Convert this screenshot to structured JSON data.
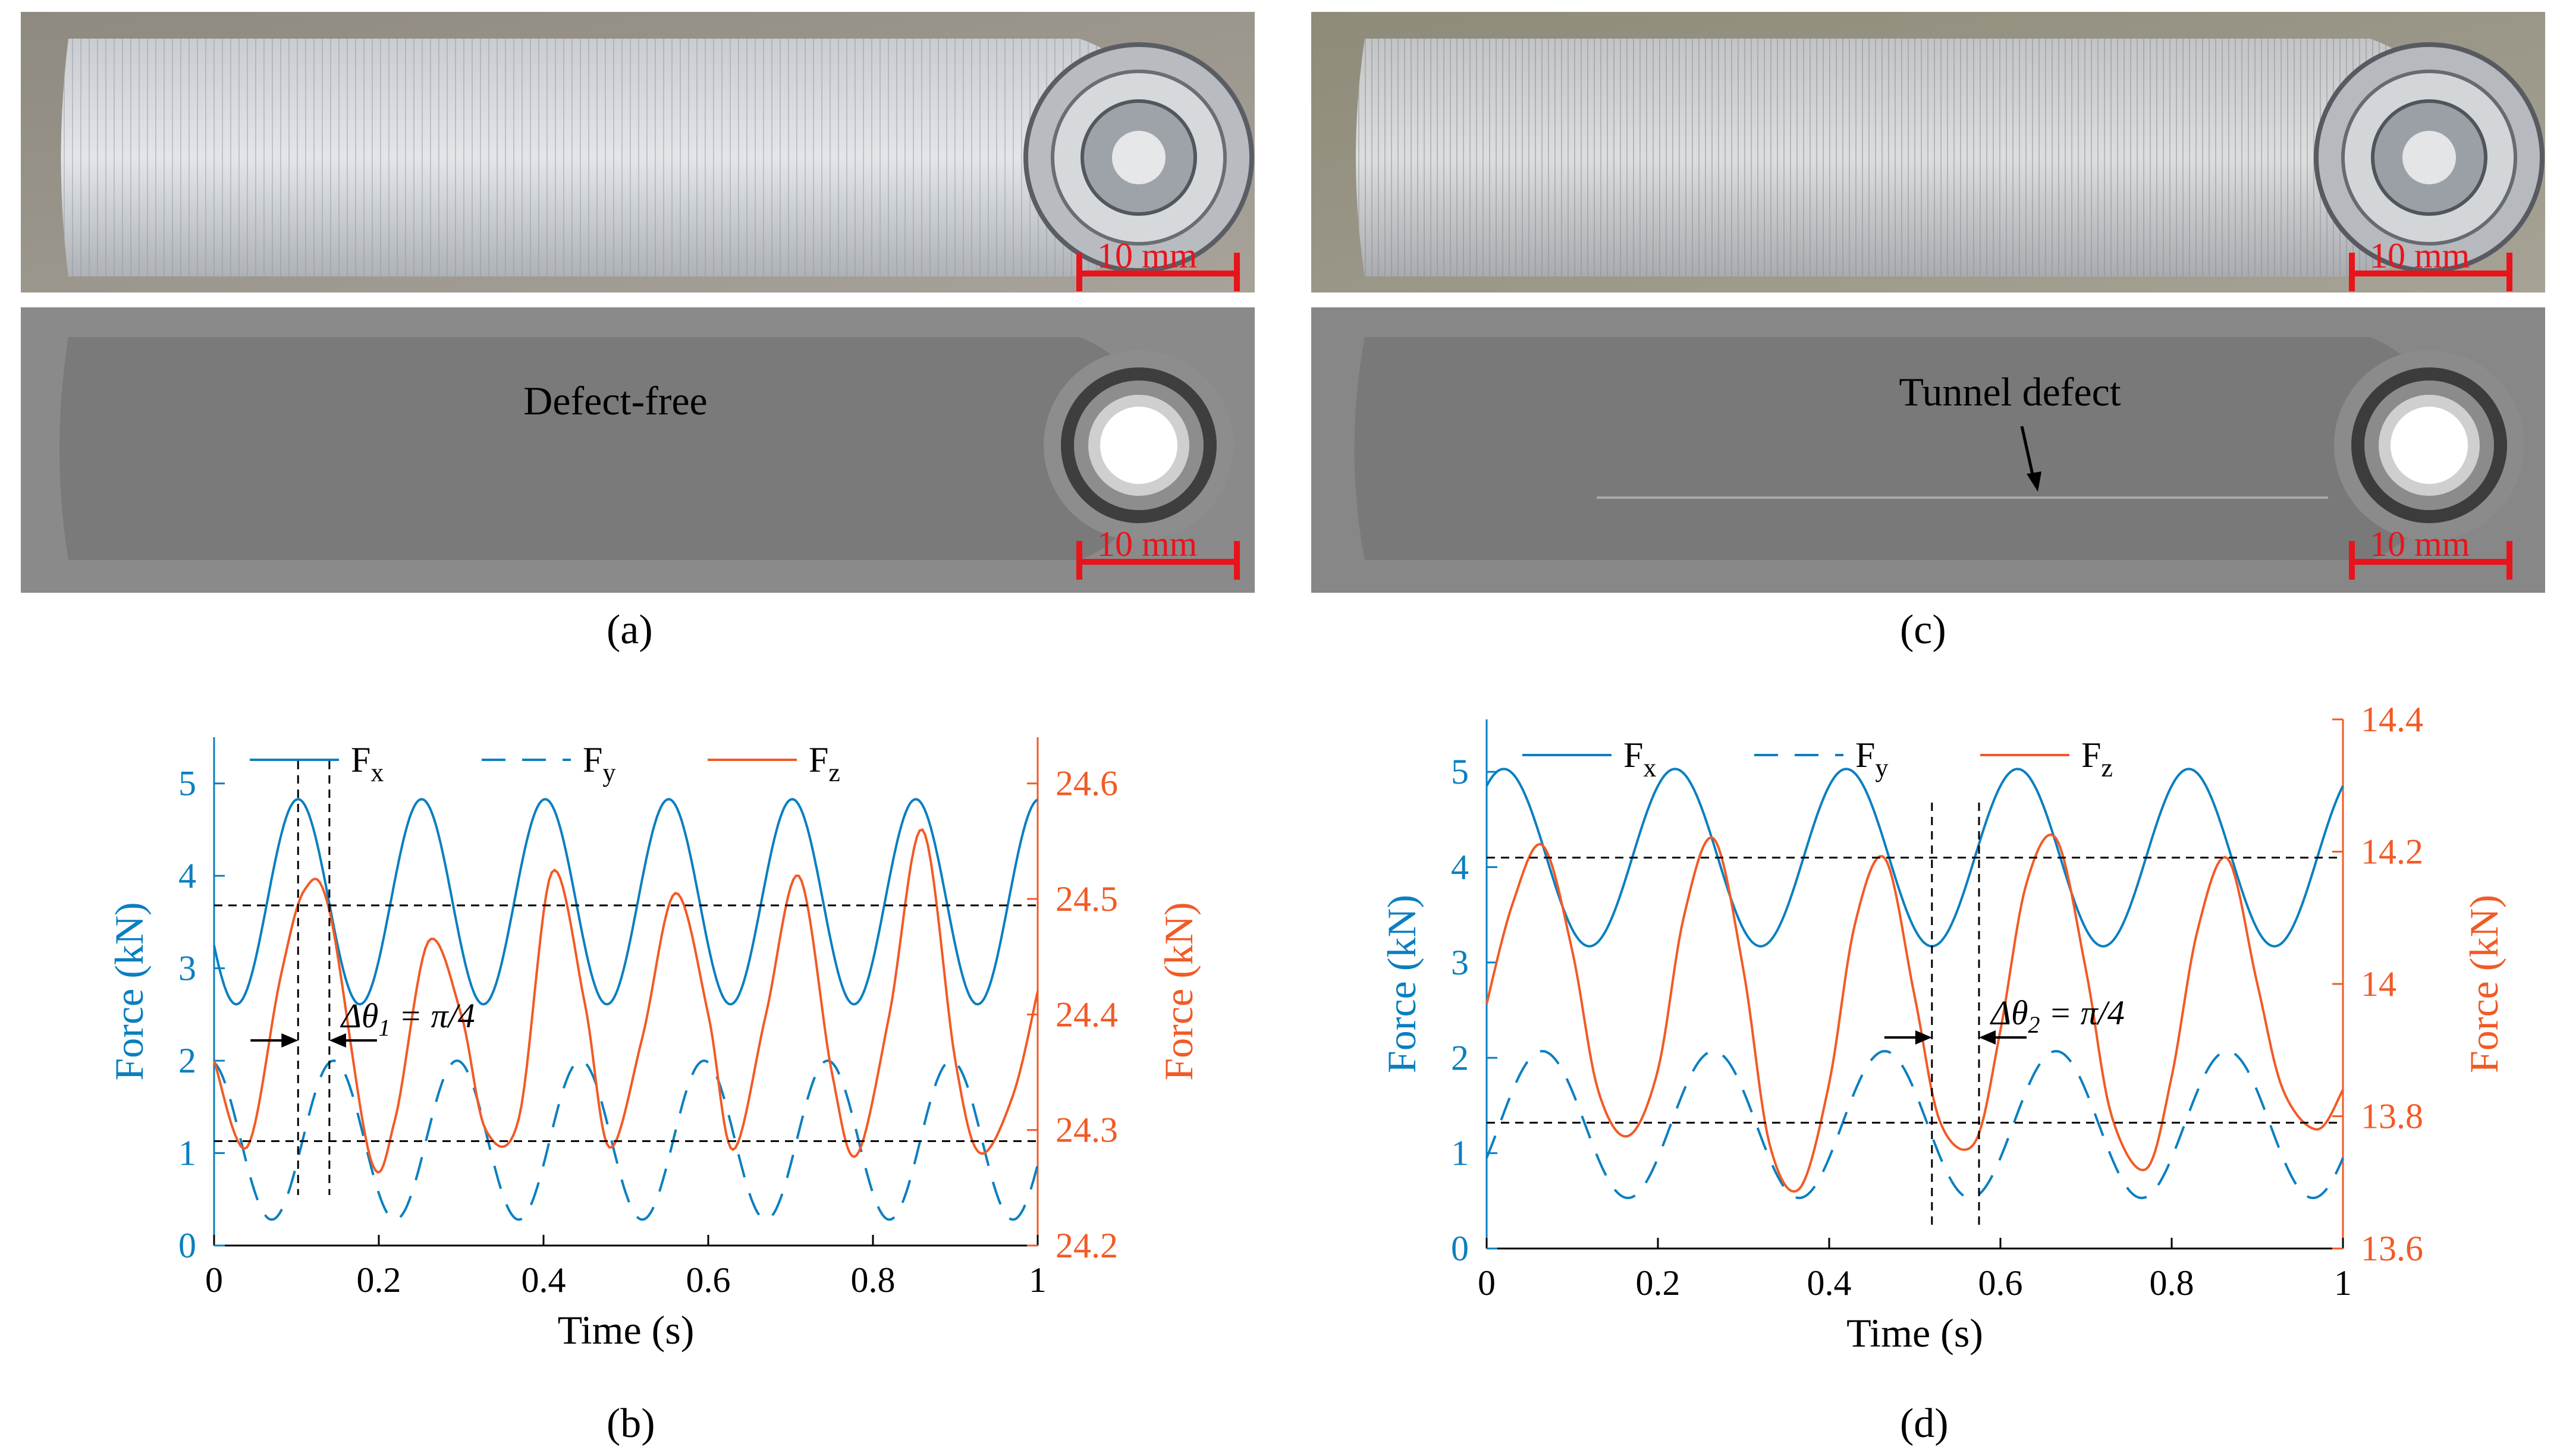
{
  "panels": {
    "a": {
      "label": "(a)",
      "xray_text": "Defect-free",
      "scale_text_top": "10 mm",
      "scale_text_bottom": "10 mm"
    },
    "b": {
      "label": "(b)"
    },
    "c": {
      "label": "(c)",
      "xray_text": "Tunnel defect",
      "scale_text_top": "10 mm",
      "scale_text_bottom": "10 mm"
    },
    "d": {
      "label": "(d)"
    }
  },
  "colors": {
    "fx": "#0a7fc0",
    "fy": "#0a7fc0",
    "fz": "#f25a25",
    "guide": "#000000",
    "scale_bar": "#e8141c"
  },
  "chart_data": [
    {
      "type": "line",
      "panel": "b",
      "xlabel": "Time (s)",
      "ylabel_left": "Force (kN)",
      "ylabel_right": "Force (kN)",
      "xlim": [
        0,
        1
      ],
      "ylim_left": [
        0,
        5.5
      ],
      "ylim_right": [
        24.2,
        24.64
      ],
      "xticks": [
        "0",
        "0.2",
        "0.4",
        "0.6",
        "0.8",
        "1"
      ],
      "yticks_left": [
        "0",
        "1",
        "2",
        "3",
        "4",
        "5"
      ],
      "yticks_right": [
        "24.2",
        "24.3",
        "24.4",
        "24.5",
        "24.6"
      ],
      "legend": {
        "fx": "F",
        "fx_sub": "x",
        "fy": "F",
        "fy_sub": "y",
        "fz": "F",
        "fz_sub": "z"
      },
      "annotation": {
        "prefix": "Δθ",
        "sub": "1",
        "text": " = π/4"
      },
      "guides": {
        "h_left": [
          3.68,
          1.13
        ],
        "v": [
          0.102,
          0.14
        ]
      },
      "series": [
        {
          "key": "fx",
          "axis": "left",
          "dash": false,
          "mean": 3.72,
          "amp": 1.11,
          "period": 0.15,
          "phase": 0.102,
          "x0": 0
        },
        {
          "key": "fy",
          "axis": "left",
          "dash": true,
          "mean": 1.14,
          "amp": 0.86,
          "period": 0.15,
          "phase": 0.145,
          "x0": 0
        },
        {
          "key": "fz",
          "axis": "right",
          "dash": false,
          "x0": 0,
          "points": [
            [
              0,
              24.36
            ],
            [
              0.04,
              24.285
            ],
            [
              0.08,
              24.43
            ],
            [
              0.11,
              24.508
            ],
            [
              0.14,
              24.49
            ],
            [
              0.19,
              24.275
            ],
            [
              0.22,
              24.31
            ],
            [
              0.26,
              24.463
            ],
            [
              0.3,
              24.4
            ],
            [
              0.33,
              24.3
            ],
            [
              0.37,
              24.31
            ],
            [
              0.41,
              24.523
            ],
            [
              0.45,
              24.41
            ],
            [
              0.48,
              24.285
            ],
            [
              0.52,
              24.38
            ],
            [
              0.56,
              24.505
            ],
            [
              0.6,
              24.4
            ],
            [
              0.63,
              24.283
            ],
            [
              0.67,
              24.4
            ],
            [
              0.71,
              24.52
            ],
            [
              0.75,
              24.35
            ],
            [
              0.78,
              24.278
            ],
            [
              0.82,
              24.4
            ],
            [
              0.86,
              24.56
            ],
            [
              0.9,
              24.36
            ],
            [
              0.93,
              24.28
            ],
            [
              0.97,
              24.33
            ],
            [
              1.0,
              24.42
            ]
          ]
        }
      ]
    },
    {
      "type": "line",
      "panel": "d",
      "xlabel": "Time (s)",
      "ylabel_left": "Force (kN)",
      "ylabel_right": "Force (kN)",
      "xlim": [
        0,
        1
      ],
      "ylim_left": [
        0,
        5.55
      ],
      "ylim_right": [
        13.6,
        14.4
      ],
      "xticks": [
        "0",
        "0.2",
        "0.4",
        "0.6",
        "0.8",
        "1"
      ],
      "yticks_left": [
        "0",
        "1",
        "2",
        "3",
        "4",
        "5"
      ],
      "yticks_right": [
        "13.6",
        "13.8",
        "14",
        "14.2",
        "14.4"
      ],
      "legend": {
        "fx": "F",
        "fx_sub": "x",
        "fy": "F",
        "fy_sub": "y",
        "fz": "F",
        "fz_sub": "z"
      },
      "annotation": {
        "prefix": "Δθ",
        "sub": "2",
        "text": " = π/4"
      },
      "guides": {
        "h_left": [
          4.1,
          1.32
        ],
        "v": [
          0.52,
          0.575
        ]
      },
      "series": [
        {
          "key": "fx",
          "axis": "left",
          "dash": false,
          "mean": 4.1,
          "amp": 0.93,
          "period": 0.2,
          "phase": 0.02,
          "x0": 0
        },
        {
          "key": "fy",
          "axis": "left",
          "dash": true,
          "mean": 1.3,
          "amp": 0.77,
          "period": 0.2,
          "phase": 0.065,
          "x0": 0
        },
        {
          "key": "fz",
          "axis": "right",
          "dash": false,
          "x0": 0,
          "points": [
            [
              0,
              13.97
            ],
            [
              0.03,
              14.12
            ],
            [
              0.065,
              14.21
            ],
            [
              0.1,
              14.05
            ],
            [
              0.13,
              13.84
            ],
            [
              0.165,
              13.77
            ],
            [
              0.2,
              13.87
            ],
            [
              0.23,
              14.1
            ],
            [
              0.265,
              14.22
            ],
            [
              0.3,
              14.02
            ],
            [
              0.33,
              13.76
            ],
            [
              0.365,
              13.69
            ],
            [
              0.4,
              13.85
            ],
            [
              0.43,
              14.09
            ],
            [
              0.465,
              14.19
            ],
            [
              0.5,
              13.98
            ],
            [
              0.53,
              13.79
            ],
            [
              0.57,
              13.76
            ],
            [
              0.6,
              13.93
            ],
            [
              0.63,
              14.15
            ],
            [
              0.665,
              14.22
            ],
            [
              0.7,
              14.02
            ],
            [
              0.73,
              13.8
            ],
            [
              0.77,
              13.72
            ],
            [
              0.8,
              13.86
            ],
            [
              0.83,
              14.08
            ],
            [
              0.865,
              14.19
            ],
            [
              0.9,
              14.0
            ],
            [
              0.93,
              13.84
            ],
            [
              0.97,
              13.78
            ],
            [
              1.0,
              13.84
            ]
          ]
        }
      ]
    }
  ]
}
